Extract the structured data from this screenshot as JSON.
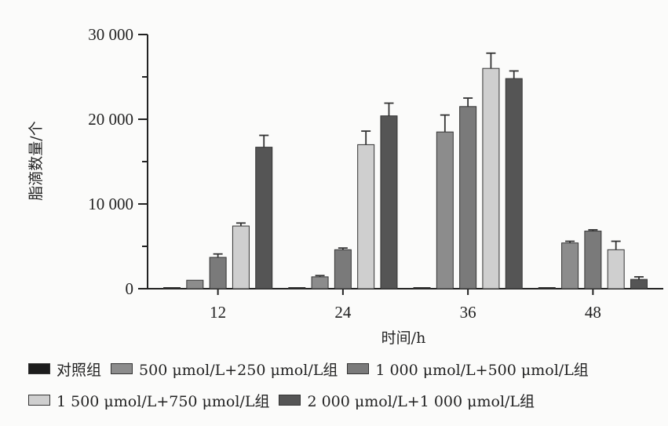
{
  "chart_data": {
    "type": "bar",
    "categories": [
      "12",
      "24",
      "36",
      "48"
    ],
    "xlabel": "时间/h",
    "ylabel": "脂滴数量/个",
    "ylim": [
      0,
      30000
    ],
    "yticks": [
      0,
      10000,
      20000,
      30000
    ],
    "ytick_labels": [
      "0",
      "10 000",
      "20 000",
      "30 000"
    ],
    "grid": false,
    "legend_position": "bottom",
    "series": [
      {
        "name": "对照组",
        "color": "#1c1c1c",
        "values": [
          0,
          0,
          0,
          0
        ],
        "errors": [
          0,
          0,
          0,
          0
        ]
      },
      {
        "name": "500 μmol/L+250 μmol/L组",
        "color": "#8c8c8c",
        "values": [
          1000,
          1400,
          18500,
          5400
        ],
        "errors": [
          0,
          150,
          2000,
          200
        ]
      },
      {
        "name": "1 000 μmol/L+500 μmol/L组",
        "color": "#7a7a7a",
        "values": [
          3700,
          4600,
          21500,
          6800
        ],
        "errors": [
          400,
          200,
          1000,
          150
        ]
      },
      {
        "name": "1 500 μmol/L+750 μmol/L组",
        "color": "#cfcfcf",
        "values": [
          7400,
          17000,
          26000,
          4600
        ],
        "errors": [
          350,
          1600,
          1800,
          1000
        ]
      },
      {
        "name": "2 000 μmol/L+1 000 μmol/L组",
        "color": "#555555",
        "values": [
          16700,
          20400,
          24800,
          1100
        ],
        "errors": [
          1400,
          1500,
          900,
          300
        ]
      }
    ]
  }
}
